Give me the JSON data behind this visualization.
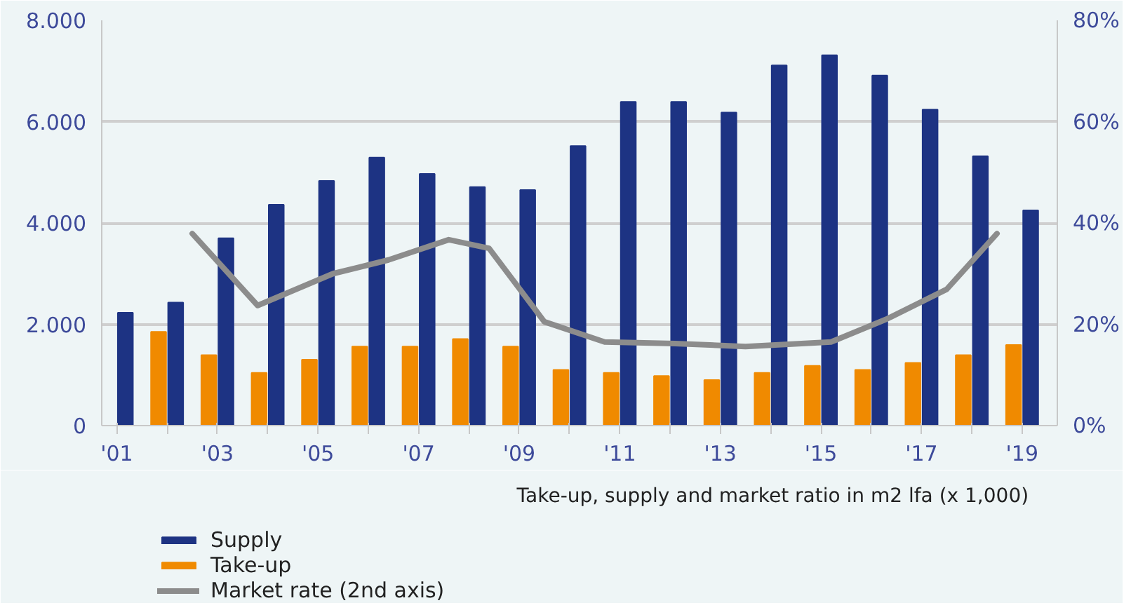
{
  "chart_data": {
    "type": "bar",
    "x": [
      2001,
      2002,
      2003,
      2004,
      2005,
      2006,
      2007,
      2008,
      2009,
      2010,
      2011,
      2012,
      2013,
      2014,
      2015,
      2016,
      2017,
      2018,
      2019
    ],
    "series": [
      {
        "name": "Supply",
        "color": "#1d3383",
        "values": [
          2230,
          2430,
          3700,
          4360,
          4830,
          5290,
          4970,
          4710,
          4650,
          5520,
          6390,
          6390,
          6180,
          7110,
          7310,
          6910,
          6240,
          5320,
          4250
        ]
      },
      {
        "name": "Take-up",
        "color": "#f08a00",
        "values": [
          null,
          1850,
          1390,
          1040,
          1300,
          1560,
          1560,
          1710,
          1560,
          1100,
          1040,
          980,
          900,
          1040,
          1180,
          1100,
          1240,
          1390,
          1590
        ]
      },
      {
        "name": "Market rate (2nd axis)",
        "type": "line",
        "axis": "y2",
        "color": "#8c8c8c",
        "x": [
          2002.5,
          2003.8,
          2005.3,
          2006.4,
          2007.6,
          2008.4,
          2009.5,
          2010.7,
          2012.1,
          2013.5,
          2015.2,
          2016.3,
          2017.5,
          2018.5
        ],
        "values": [
          37.9,
          23.7,
          30,
          32.7,
          36.7,
          35,
          20.5,
          16.5,
          16.2,
          15.6,
          16.5,
          21,
          26.9,
          37.9
        ]
      }
    ],
    "xlim": [
      2000.7,
      2019.7
    ],
    "xticks": [
      {
        "value": 2001,
        "label": "'01"
      },
      {
        "value": 2002,
        "label": null
      },
      {
        "value": 2003,
        "label": "'03"
      },
      {
        "value": 2004,
        "label": null
      },
      {
        "value": 2005,
        "label": "'05"
      },
      {
        "value": 2006,
        "label": null
      },
      {
        "value": 2007,
        "label": "'07"
      },
      {
        "value": 2008,
        "label": null
      },
      {
        "value": 2009,
        "label": "'09"
      },
      {
        "value": 2010,
        "label": null
      },
      {
        "value": 2011,
        "label": "'11"
      },
      {
        "value": 2012,
        "label": null
      },
      {
        "value": 2013,
        "label": "'13"
      },
      {
        "value": 2014,
        "label": null
      },
      {
        "value": 2015,
        "label": "'15"
      },
      {
        "value": 2016,
        "label": null
      },
      {
        "value": 2017,
        "label": "'17"
      },
      {
        "value": 2018,
        "label": null
      },
      {
        "value": 2019,
        "label": "'19"
      }
    ],
    "ylim": [
      0,
      8000
    ],
    "yticks": [
      0,
      {
        "value": 2000,
        "label": "2.000"
      },
      {
        "value": 4000,
        "label": "4.000"
      },
      {
        "value": 6000,
        "label": "6.000"
      },
      {
        "value": 8000,
        "label": "8.000"
      }
    ],
    "y2lim": [
      0,
      80
    ],
    "y2ticks": [
      {
        "value": 0,
        "label": "0%"
      },
      {
        "value": 20,
        "label": "20%"
      },
      {
        "value": 40,
        "label": "40%"
      },
      {
        "value": 60,
        "label": "60%"
      },
      {
        "value": 80,
        "label": "80%"
      }
    ],
    "grid": "y",
    "legend": "bottom left",
    "annotations": [
      "Take-up, supply and market ratio in m2 lfa (x 1,000)"
    ]
  }
}
